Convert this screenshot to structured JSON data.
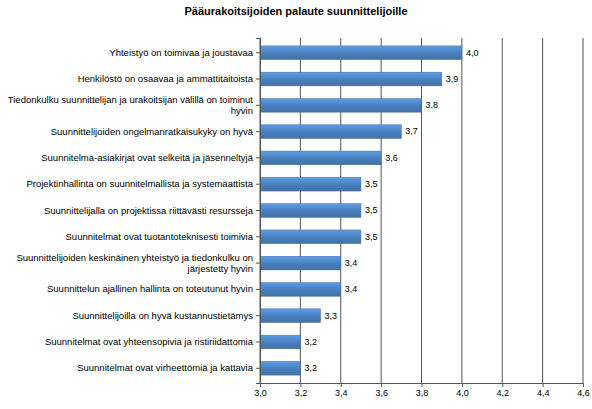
{
  "chart_data": {
    "type": "bar",
    "orientation": "horizontal",
    "title": "Pääurakoitsijoiden palaute suunnittelijoille",
    "categories": [
      "Yhteistyö on toimivaa ja joustavaa",
      "Henkilöstö on osaavaa ja ammattitaitoista",
      "Tiedonkulku suunnittelijan ja urakoitsijan välillä on toiminut hyvin",
      "Suunnittelijoiden ongelmanratkaisukyky on hyvä",
      "Suunnitelma-asiakirjat ovat selkeitä ja jäsenneltyjä",
      "Projektinhallinta on suunnitelmallista ja systemaattista",
      "Suunnittelijalla on projektissa riittävästi resursseja",
      "Suunnitelmat ovat tuotantoteknisesti toimivia",
      "Suunnittelijoiden keskinäinen yhteistyö ja tiedonkulku on järjestetty hyvin",
      "Suunnittelun ajallinen hallinta on toteutunut hyvin",
      "Suunnittelijoilla on hyvä kustannustietämys",
      "Suunnitelmat ovat yhteensopivia ja ristiriidattomia",
      "Suunnitelmat ovat virheettömiä ja kattavia"
    ],
    "values": [
      4.0,
      3.9,
      3.8,
      3.7,
      3.6,
      3.5,
      3.5,
      3.5,
      3.4,
      3.4,
      3.3,
      3.2,
      3.2
    ],
    "value_labels": [
      "4,0",
      "3,9",
      "3,8",
      "3,7",
      "3,6",
      "3,5",
      "3,5",
      "3,5",
      "3,4",
      "3,4",
      "3,3",
      "3,2",
      "3,2"
    ],
    "data_labels": true,
    "color": "#4a7ebb",
    "xlim": [
      3.0,
      4.6
    ],
    "xticks": [
      {
        "value": 3.0,
        "label": "3,0"
      },
      {
        "value": 3.2,
        "label": "3,2"
      },
      {
        "value": 3.4,
        "label": "3,4"
      },
      {
        "value": 3.6,
        "label": "3,6"
      },
      {
        "value": 3.8,
        "label": "3,8"
      },
      {
        "value": 4.0,
        "label": "4,0"
      },
      {
        "value": 4.2,
        "label": "4,2"
      },
      {
        "value": 4.4,
        "label": "4,4"
      },
      {
        "value": 4.6,
        "label": "4,6"
      }
    ],
    "grid": true
  }
}
